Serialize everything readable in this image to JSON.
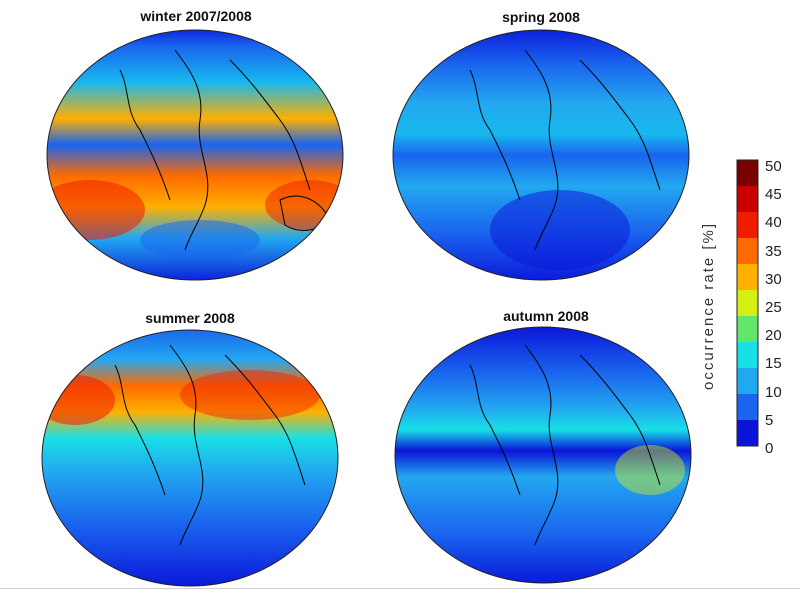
{
  "panels": [
    {
      "title": "winter 2007/2008",
      "scheme": "winter"
    },
    {
      "title": "spring 2008",
      "scheme": "spring"
    },
    {
      "title": "summer 2008",
      "scheme": "summer"
    },
    {
      "title": "autumn 2008",
      "scheme": "autumn"
    }
  ],
  "colorbar": {
    "label": "occurrence rate [%]",
    "ticks": [
      "50",
      "45",
      "40",
      "35",
      "30",
      "25",
      "20",
      "15",
      "10",
      "5",
      "0"
    ],
    "colors": [
      "#7a0000",
      "#c80000",
      "#f01c00",
      "#ff6a00",
      "#ffb000",
      "#d4f012",
      "#60e66a",
      "#18e0e6",
      "#22a8f0",
      "#1a64ee",
      "#0a14d8"
    ]
  }
}
